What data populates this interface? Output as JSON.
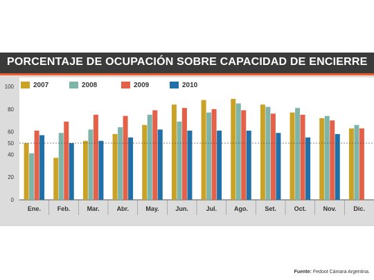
{
  "title": "PORCENTAJE DE OCUPACIÓN SOBRE CAPACIDAD DE ENCIERRE",
  "source_label": "Fuente:",
  "source_text": "Fedoot Cámara Argentina.",
  "colors": {
    "2007": "#c9a227",
    "2008": "#7fb5a8",
    "2009": "#e36049",
    "2010": "#1f6fa8",
    "header_bg": "#3a3a3a",
    "header_accent": "#f05a28"
  },
  "chart_data": {
    "type": "bar",
    "categories": [
      "Ene.",
      "Feb.",
      "Mar.",
      "Abr.",
      "May.",
      "Jun.",
      "Jul.",
      "Ago.",
      "Set.",
      "Oct.",
      "Nov.",
      "Dic."
    ],
    "series": [
      {
        "name": "2007",
        "values": [
          50,
          37,
          52,
          58,
          66,
          84,
          88,
          89,
          84,
          77,
          72,
          63
        ]
      },
      {
        "name": "2008",
        "values": [
          41,
          59,
          62,
          64,
          75,
          69,
          77,
          85,
          82,
          81,
          74,
          66
        ]
      },
      {
        "name": "2009",
        "values": [
          61,
          69,
          75,
          74,
          79,
          81,
          80,
          79,
          76,
          75,
          70,
          63
        ]
      },
      {
        "name": "2010",
        "values": [
          57,
          50,
          52,
          55,
          62,
          61,
          61,
          61,
          59,
          55,
          58,
          null
        ]
      }
    ],
    "ylim": [
      0,
      100
    ],
    "yticks": [
      0,
      20,
      40,
      50,
      60,
      80,
      100
    ],
    "reference_line": 50,
    "legend_position": "top-left",
    "grid": false
  }
}
